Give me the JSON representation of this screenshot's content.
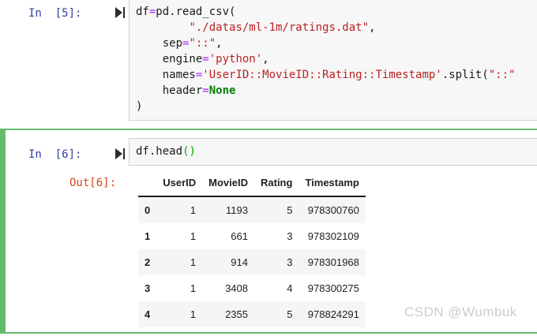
{
  "colors": {
    "accent_green": "#66bb6a",
    "prompt_in": "#303f9f",
    "prompt_out": "#d84315",
    "code_string": "#ba2121",
    "code_operator": "#aa22ff",
    "code_keyword": "#008000",
    "code_bracket": "#00aa00",
    "cell_bg": "#f7f7f7",
    "cell_border": "#cfcfcf",
    "row_stripe": "#f5f5f5"
  },
  "icons": {
    "run_cell": "play-triangle-with-bar"
  },
  "watermark": "CSDN @Wumbuk",
  "cells": [
    {
      "prompt": "In  [5]:",
      "code_lines": [
        [
          {
            "t": "df",
            "c": "plain"
          },
          {
            "t": "=",
            "c": "op"
          },
          {
            "t": "pd.read_csv(",
            "c": "plain"
          }
        ],
        [
          {
            "t": "        ",
            "c": "plain"
          },
          {
            "t": "\"./datas/ml-1m/ratings.dat\"",
            "c": "str"
          },
          {
            "t": ",",
            "c": "plain"
          }
        ],
        [
          {
            "t": "    sep",
            "c": "plain"
          },
          {
            "t": "=",
            "c": "op"
          },
          {
            "t": "\"::\"",
            "c": "str"
          },
          {
            "t": ",",
            "c": "plain"
          }
        ],
        [
          {
            "t": "    engine",
            "c": "plain"
          },
          {
            "t": "=",
            "c": "op"
          },
          {
            "t": "'python'",
            "c": "str"
          },
          {
            "t": ",",
            "c": "plain"
          }
        ],
        [
          {
            "t": "    names",
            "c": "plain"
          },
          {
            "t": "=",
            "c": "op"
          },
          {
            "t": "'UserID::MovieID::Rating::Timestamp'",
            "c": "str"
          },
          {
            "t": ".split(",
            "c": "plain"
          },
          {
            "t": "\"::\"",
            "c": "str"
          }
        ],
        [
          {
            "t": "    header",
            "c": "plain"
          },
          {
            "t": "=",
            "c": "op"
          },
          {
            "t": "None",
            "c": "kw"
          }
        ],
        [
          {
            "t": ")",
            "c": "plain"
          }
        ]
      ]
    },
    {
      "prompt": "In  [6]:",
      "code_lines": [
        [
          {
            "t": "df.head",
            "c": "plain"
          },
          {
            "t": "()",
            "c": "bracket"
          }
        ]
      ],
      "output": {
        "prompt": "Out[6]:",
        "table": {
          "index_header": "",
          "columns": [
            "UserID",
            "MovieID",
            "Rating",
            "Timestamp"
          ],
          "rows": [
            {
              "index": "0",
              "values": [
                "1",
                "1193",
                "5",
                "978300760"
              ]
            },
            {
              "index": "1",
              "values": [
                "1",
                "661",
                "3",
                "978302109"
              ]
            },
            {
              "index": "2",
              "values": [
                "1",
                "914",
                "3",
                "978301968"
              ]
            },
            {
              "index": "3",
              "values": [
                "1",
                "3408",
                "4",
                "978300275"
              ]
            },
            {
              "index": "4",
              "values": [
                "1",
                "2355",
                "5",
                "978824291"
              ]
            }
          ]
        }
      }
    }
  ]
}
